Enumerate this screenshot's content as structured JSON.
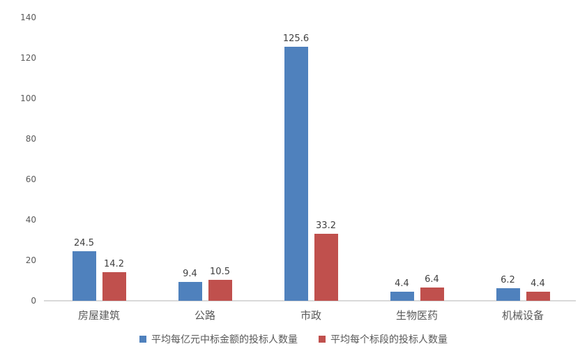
{
  "chart_data": {
    "type": "bar",
    "title": "",
    "categories": [
      "房屋建筑",
      "公路",
      "市政",
      "生物医药",
      "机械设备"
    ],
    "series": [
      {
        "name": "平均每亿元中标金额的投标人数量",
        "color": "#4F81BD",
        "values": [
          24.5,
          9.4,
          125.6,
          4.4,
          6.2
        ]
      },
      {
        "name": "平均每个标段的投标人数量",
        "color": "#C0504D",
        "values": [
          14.2,
          10.5,
          33.2,
          6.4,
          4.4
        ]
      }
    ],
    "xlabel": "",
    "ylabel": "",
    "ylim": [
      0,
      140
    ],
    "yticks": [
      0,
      20,
      40,
      60,
      80,
      100,
      120,
      140
    ],
    "grid": false,
    "legend_position": "bottom",
    "value_labels_shown": true
  },
  "colors": {
    "axis_line": "#D9D9D9",
    "tick_label": "#595959",
    "value_label": "#404040",
    "category_label": "#595959",
    "legend_label": "#595959",
    "background": "#FFFFFF"
  }
}
